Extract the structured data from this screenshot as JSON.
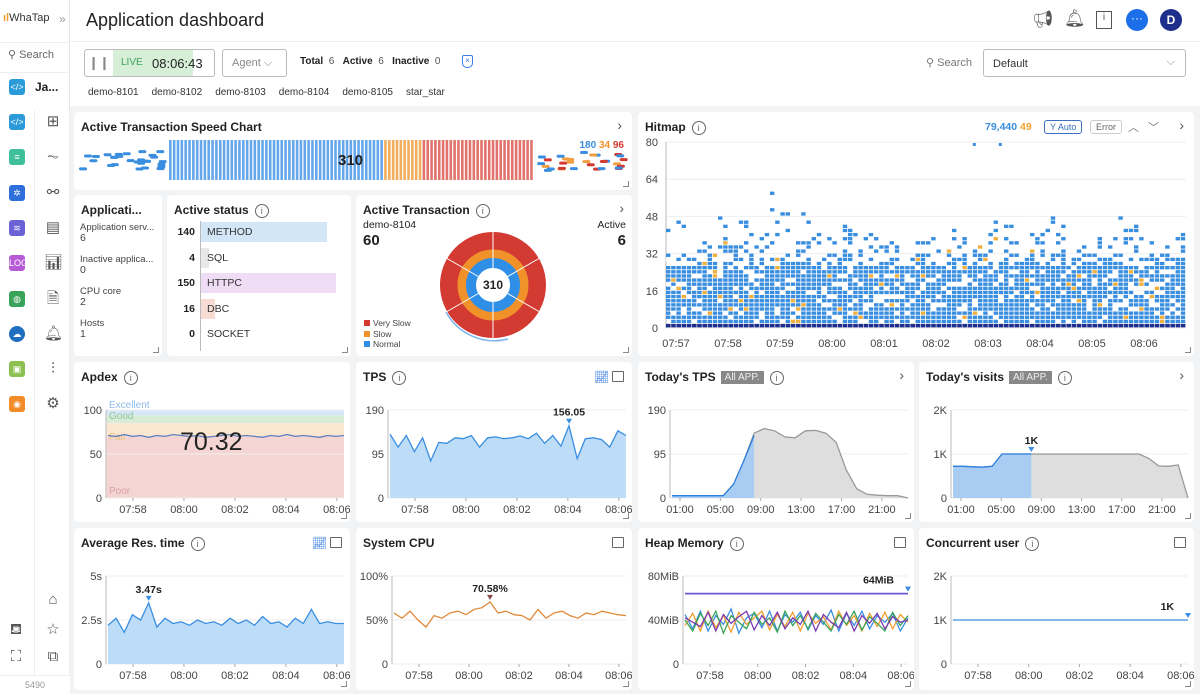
{
  "brand": {
    "logo": "WhaTap",
    "collapse": "»"
  },
  "sidebar": {
    "search": "Search",
    "project": "Ja...",
    "footer_id": "5490",
    "products": [
      {
        "icon": "code-icon",
        "color": "#2a9bd8"
      },
      {
        "icon": "server-icon",
        "color": "#3fbf9a"
      },
      {
        "icon": "kubernetes-icon",
        "color": "#2f6fdc"
      },
      {
        "icon": "database-icon",
        "color": "#6b62d6"
      },
      {
        "icon": "log-icon",
        "color": "#b65ad6"
      },
      {
        "icon": "globe-icon",
        "color": "#3aa35a"
      },
      {
        "icon": "cloud-icon",
        "color": "#1f6fc0"
      },
      {
        "icon": "browser-icon",
        "color": "#8cc152"
      },
      {
        "icon": "radio-icon",
        "color": "#f28c28"
      }
    ],
    "menu": [
      "dashboard-icon",
      "chart-icon",
      "topology-icon",
      "log-icon",
      "bar-chart-icon",
      "document-icon",
      "bell-icon",
      "chart-settings-icon",
      "gear-icon"
    ]
  },
  "header": {
    "title": "Application dashboard",
    "avatar": "D"
  },
  "toolbar": {
    "live": "LIVE",
    "time": "08:06:43",
    "agent": "Agent",
    "total_label": "Total",
    "total": "6",
    "active_label": "Active",
    "active": "6",
    "inactive_label": "Inactive",
    "inactive": "0",
    "search": "Search",
    "preset": "Default",
    "agents": [
      "demo-8101",
      "demo-8102",
      "demo-8103",
      "demo-8104",
      "demo-8105",
      "star_star"
    ]
  },
  "speed": {
    "title": "Active Transaction Speed Chart",
    "total": "310",
    "normal": "180",
    "slow": "34",
    "very_slow": "96"
  },
  "app": {
    "title": "Applicati...",
    "items": [
      {
        "label": "Application serv...",
        "value": "6"
      },
      {
        "label": "Inactive applica...",
        "value": "0"
      },
      {
        "label": "CPU core",
        "value": "2"
      },
      {
        "label": "Hosts",
        "value": "1"
      }
    ]
  },
  "active_status": {
    "title": "Active status",
    "rows": [
      {
        "value": "140",
        "label": "METHOD",
        "n": 140,
        "color": "#d3e6f8"
      },
      {
        "value": "4",
        "label": "SQL",
        "n": 4,
        "color": "#e8e8e8"
      },
      {
        "value": "150",
        "label": "HTTPC",
        "n": 150,
        "color": "#efdcf5"
      },
      {
        "value": "16",
        "label": "DBC",
        "n": 16,
        "color": "#f7dcd6"
      },
      {
        "value": "0",
        "label": "SOCKET",
        "n": 0,
        "color": "#eee"
      }
    ]
  },
  "active_tx": {
    "title": "Active Transaction",
    "agent": "demo-8104",
    "agent_value": "60",
    "active_label": "Active",
    "active_value": "6",
    "center": "310",
    "legend": [
      "Very Slow",
      "Slow",
      "Normal"
    ],
    "colors": {
      "very_slow": "#d23a32",
      "slow": "#f0912a",
      "normal": "#2f8fe6"
    }
  },
  "hitmap": {
    "title": "Hitmap",
    "count": "79,440",
    "error_count": "49",
    "y_auto": "Y Auto",
    "error": "Error"
  },
  "panels": {
    "apdex": "Apdex",
    "tps": "TPS",
    "today_tps": "Today's TPS",
    "today_visits": "Today's visits",
    "all_app": "All APP.",
    "avg_res": "Average Res. time",
    "cpu": "System CPU",
    "heap": "Heap Memory",
    "concurrent": "Concurrent user",
    "apdex_value": "70.32"
  },
  "chart_data": [
    {
      "id": "hitmap",
      "type": "heatmap",
      "ylim": [
        0,
        80
      ],
      "y_ticks": [
        "0",
        "16",
        "32",
        "48",
        "64",
        "80"
      ],
      "x_ticks": [
        "07:57",
        "07:58",
        "07:59",
        "08:00",
        "08:01",
        "08:02",
        "08:03",
        "08:04",
        "08:05",
        "08:06"
      ],
      "column_peaks": [
        36,
        40,
        30,
        44,
        38,
        46,
        42,
        50,
        34,
        40,
        52,
        44,
        38,
        48,
        36,
        42,
        40,
        46,
        34,
        38,
        42,
        36,
        40,
        34,
        44,
        38,
        36,
        42,
        38,
        34,
        40,
        46,
        42,
        38,
        36,
        44,
        40,
        42,
        38,
        36,
        40,
        34,
        38,
        42,
        40,
        44,
        38,
        36,
        34,
        38
      ]
    },
    {
      "id": "apdex",
      "type": "line",
      "ylim": [
        0,
        100
      ],
      "y_ticks": [
        "0",
        "50",
        "100"
      ],
      "x_ticks": [
        "07:58",
        "08:00",
        "08:02",
        "08:04",
        "08:06"
      ],
      "bands": [
        "Excellent",
        "Good",
        "Fair",
        "Poor"
      ],
      "series": [
        {
          "color": "#5b7fc2",
          "values": [
            71,
            70,
            72,
            70,
            71,
            69,
            71,
            70,
            72,
            71,
            70,
            71,
            69,
            70,
            71,
            72,
            70,
            71,
            70,
            69,
            71,
            70,
            72,
            70,
            71,
            70,
            69,
            71,
            70,
            71
          ]
        }
      ]
    },
    {
      "id": "tps",
      "type": "area",
      "ylim": [
        0,
        190
      ],
      "y_ticks": [
        "0",
        "95",
        "190"
      ],
      "x_ticks": [
        "07:58",
        "08:00",
        "08:02",
        "08:04",
        "08:06"
      ],
      "marker": {
        "label": "156.05",
        "index": 22
      },
      "series": [
        {
          "color": "#3a8ee0",
          "fill": "#bcdcf8",
          "values": [
            138,
            110,
            135,
            100,
            130,
            80,
            120,
            118,
            130,
            128,
            135,
            110,
            130,
            132,
            128,
            130,
            134,
            128,
            140,
            118,
            135,
            112,
            156,
            85,
            128,
            130,
            126,
            110,
            145,
            135
          ]
        }
      ]
    },
    {
      "id": "today_tps",
      "type": "area",
      "ylim": [
        0,
        190
      ],
      "y_ticks": [
        "0",
        "95",
        "190"
      ],
      "x_ticks": [
        "01:00",
        "05:00",
        "09:00",
        "13:00",
        "17:00",
        "21:00"
      ],
      "series": [
        {
          "name_hidden": true,
          "color": "#999",
          "fill": "#dedede",
          "values": [
            5,
            5,
            5,
            5,
            5,
            5,
            30,
            80,
            140,
            150,
            145,
            132,
            130,
            145,
            146,
            140,
            120,
            60,
            20,
            8,
            6,
            5,
            5,
            0
          ]
        },
        {
          "color": "#2f80dd",
          "fill": "#a9cdf2",
          "values": [
            5,
            5,
            5,
            5,
            5,
            5,
            30,
            80,
            135
          ]
        }
      ]
    },
    {
      "id": "today_visits",
      "type": "area",
      "ylim": [
        0,
        2000
      ],
      "y_ticks": [
        "0",
        "1K",
        "2K"
      ],
      "x_ticks": [
        "01:00",
        "05:00",
        "09:00",
        "13:00",
        "17:00",
        "21:00"
      ],
      "marker": {
        "label": "1K",
        "index": 8
      },
      "series": [
        {
          "color": "#999",
          "fill": "#dedede",
          "values": [
            720,
            720,
            710,
            700,
            720,
            1000,
            1000,
            1000,
            1000,
            1000,
            1000,
            1000,
            1000,
            1000,
            1000,
            1000,
            1000,
            1000,
            1000,
            1000,
            900,
            730,
            720,
            750,
            0
          ]
        },
        {
          "color": "#2f80dd",
          "fill": "#a9cdf2",
          "values": [
            720,
            720,
            710,
            700,
            720,
            1000,
            1000,
            1000,
            1000
          ]
        }
      ]
    },
    {
      "id": "avg_res",
      "type": "area",
      "ylim": [
        0,
        5
      ],
      "y_ticks": [
        "0",
        "2.5s",
        "5s"
      ],
      "x_ticks": [
        "07:58",
        "08:00",
        "08:02",
        "08:04",
        "08:06"
      ],
      "marker": {
        "label": "3.47s",
        "index": 5
      },
      "series": [
        {
          "color": "#3a8ee0",
          "fill": "#bcdcf8",
          "values": [
            2.2,
            2.6,
            1.8,
            2.8,
            2.5,
            3.47,
            2.1,
            2.6,
            2.3,
            2.4,
            2.2,
            2.5,
            2.3,
            2.4,
            2.2,
            2.6,
            2.3,
            2.5,
            2.2,
            2.7,
            2.3,
            2.4,
            2.1,
            2.6,
            2.3,
            3.1,
            2.3,
            2.4,
            2.3,
            2.3
          ]
        }
      ]
    },
    {
      "id": "cpu",
      "type": "line",
      "ylim": [
        0,
        100
      ],
      "y_ticks": [
        "0",
        "50%",
        "100%"
      ],
      "x_ticks": [
        "07:58",
        "08:00",
        "08:02",
        "08:04",
        "08:06"
      ],
      "marker": {
        "label": "70.58%",
        "index": 12,
        "color": "#8a4a4a"
      },
      "series": [
        {
          "color": "#e08a3a",
          "values": [
            58,
            52,
            60,
            50,
            42,
            55,
            52,
            58,
            60,
            56,
            62,
            64,
            70.58,
            58,
            60,
            56,
            55,
            50,
            62,
            52,
            58,
            60,
            55,
            52,
            58,
            56,
            60,
            58,
            56,
            55
          ]
        }
      ]
    },
    {
      "id": "heap",
      "type": "line",
      "ylim": [
        0,
        80
      ],
      "y_ticks": [
        "0",
        "40MiB",
        "80MiB"
      ],
      "x_ticks": [
        "07:58",
        "08:00",
        "08:02",
        "08:04",
        "08:06"
      ],
      "marker": {
        "label": "64MiB",
        "index": 29
      },
      "series": [
        {
          "color": "#6a5adb",
          "values": [
            64,
            64,
            64,
            64,
            64,
            64,
            64,
            64,
            64,
            64,
            64,
            64,
            64,
            64,
            64,
            64,
            64,
            64,
            64,
            64,
            64,
            64,
            64,
            64,
            64,
            64,
            64,
            64,
            64,
            64
          ]
        },
        {
          "color": "#3a8ee0",
          "values": [
            45,
            32,
            48,
            30,
            44,
            36,
            50,
            28,
            42,
            46,
            33,
            48,
            30,
            45,
            38,
            47,
            31,
            44,
            36,
            49,
            30,
            46,
            35,
            48,
            32,
            44,
            38,
            46,
            30,
            42
          ]
        },
        {
          "color": "#f0a030",
          "values": [
            35,
            46,
            30,
            48,
            33,
            44,
            29,
            47,
            36,
            42,
            48,
            31,
            45,
            34,
            47,
            30,
            46,
            37,
            43,
            31,
            48,
            35,
            44,
            30,
            46,
            34,
            47,
            32,
            45,
            38
          ]
        },
        {
          "color": "#3aa35a",
          "values": [
            40,
            30,
            46,
            35,
            48,
            28,
            44,
            38,
            32,
            47,
            36,
            42,
            29,
            48,
            35,
            44,
            32,
            46,
            38,
            30,
            45,
            36,
            48,
            31,
            43,
            37,
            30,
            47,
            35,
            44
          ]
        },
        {
          "color": "#7a3ab0",
          "values": [
            42,
            38,
            34,
            47,
            30,
            45,
            37,
            43,
            48,
            31,
            44,
            35,
            47,
            32,
            42,
            36,
            48,
            30,
            45,
            38,
            33,
            47,
            30,
            44,
            37,
            46,
            32,
            43,
            38,
            40
          ]
        }
      ]
    },
    {
      "id": "concurrent",
      "type": "line",
      "ylim": [
        0,
        2000
      ],
      "y_ticks": [
        "0",
        "1K",
        "2K"
      ],
      "x_ticks": [
        "07:58",
        "08:00",
        "08:02",
        "08:04",
        "08:06"
      ],
      "marker": {
        "label": "1K",
        "index": 29
      },
      "series": [
        {
          "color": "#3a8ee0",
          "values": [
            1000,
            1000,
            1000,
            1000,
            1000,
            1000,
            1000,
            1000,
            1000,
            1000,
            1000,
            1000,
            1000,
            1000,
            1000,
            1000,
            1000,
            1000,
            1000,
            1000,
            1000,
            1000,
            1000,
            1000,
            1000,
            1000,
            1000,
            1000,
            1000,
            1000
          ]
        }
      ]
    }
  ]
}
